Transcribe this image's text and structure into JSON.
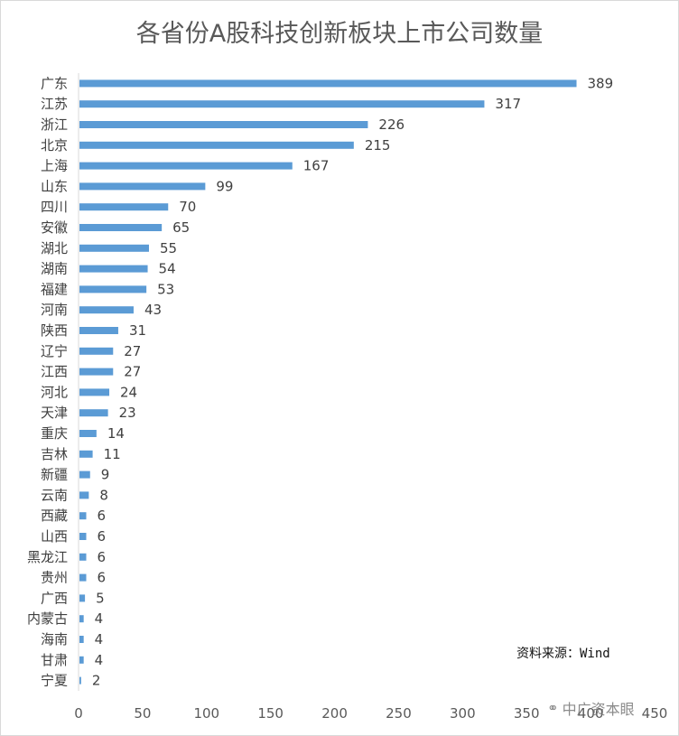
{
  "chart_data": {
    "type": "bar",
    "orientation": "horizontal",
    "title": "各省份A股科技创新板块上市公司数量",
    "xlabel": "",
    "ylabel": "",
    "xlim": [
      0,
      450
    ],
    "x_ticks": [
      0,
      50,
      100,
      150,
      200,
      250,
      300,
      350,
      400,
      450
    ],
    "grid": false,
    "legend": "none",
    "bar_color": "#5b9bd5",
    "categories": [
      "广东",
      "江苏",
      "浙江",
      "北京",
      "上海",
      "山东",
      "四川",
      "安徽",
      "湖北",
      "湖南",
      "福建",
      "河南",
      "陕西",
      "辽宁",
      "江西",
      "河北",
      "天津",
      "重庆",
      "吉林",
      "新疆",
      "云南",
      "西藏",
      "山西",
      "黑龙江",
      "贵州",
      "广西",
      "内蒙古",
      "海南",
      "甘肃",
      "宁夏"
    ],
    "values": [
      389,
      317,
      226,
      215,
      167,
      99,
      70,
      65,
      55,
      54,
      53,
      43,
      31,
      27,
      27,
      24,
      23,
      14,
      11,
      9,
      8,
      6,
      6,
      6,
      6,
      5,
      4,
      4,
      4,
      2
    ]
  },
  "source_note": "资料来源：Wind",
  "watermark": {
    "text": "中广资本眼",
    "icon": "wechat-icon"
  }
}
